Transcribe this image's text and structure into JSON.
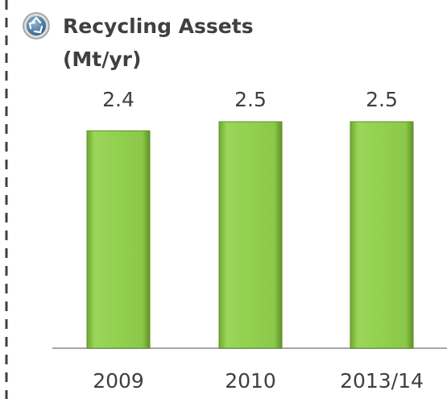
{
  "chart_data": {
    "type": "bar",
    "title": "Recycling Assets",
    "subtitle": "(Mt/yr)",
    "categories": [
      "2009",
      "2010",
      "2013/14"
    ],
    "values": [
      2.4,
      2.5,
      2.5
    ],
    "color": "#92d050"
  }
}
